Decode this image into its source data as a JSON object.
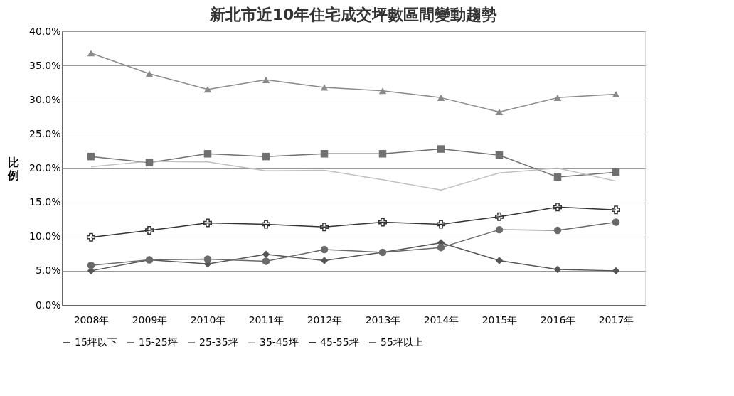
{
  "chart_data": {
    "type": "line",
    "title": "新北市近10年住宅成交坪數區間變動趨勢",
    "ylabel": "比例",
    "categories": [
      "2008年",
      "2009年",
      "2010年",
      "2011年",
      "2012年",
      "2013年",
      "2014年",
      "2015年",
      "2016年",
      "2017年"
    ],
    "ylim": [
      0,
      40
    ],
    "yticks": [
      {
        "value": 0,
        "label": "0.0%"
      },
      {
        "value": 5,
        "label": "5.0%"
      },
      {
        "value": 10,
        "label": "10.0%"
      },
      {
        "value": 15,
        "label": "15.0%"
      },
      {
        "value": 20,
        "label": "20.0%"
      },
      {
        "value": 25,
        "label": "25.0%"
      },
      {
        "value": 30,
        "label": "30.0%"
      },
      {
        "value": 35,
        "label": "35.0%"
      },
      {
        "value": 40,
        "label": "40.0%"
      }
    ],
    "grid": "y",
    "legend": "bottom",
    "line_style": "solid",
    "series": [
      {
        "name": "15坪以下",
        "color": "#555555",
        "marker": "diamond",
        "values": [
          5.0,
          6.6,
          6.0,
          7.4,
          6.5,
          7.7,
          9.1,
          6.5,
          5.2,
          5.0
        ]
      },
      {
        "name": "15-25坪",
        "color": "#707070",
        "marker": "square",
        "values": [
          21.7,
          20.8,
          22.1,
          21.7,
          22.1,
          22.1,
          22.8,
          21.9,
          18.7,
          19.4
        ]
      },
      {
        "name": "25-35坪",
        "color": "#8a8a8a",
        "marker": "triangle",
        "values": [
          36.8,
          33.8,
          31.5,
          32.9,
          31.8,
          31.3,
          30.3,
          28.2,
          30.3,
          30.8
        ]
      },
      {
        "name": "35-45坪",
        "color": "#c0c0c0",
        "marker": "none",
        "values": [
          20.2,
          21.0,
          20.9,
          19.6,
          19.7,
          18.3,
          16.8,
          19.3,
          20.0,
          18.1
        ]
      },
      {
        "name": "45-55坪",
        "color": "#333333",
        "marker": "cross",
        "values": [
          9.9,
          10.9,
          12.0,
          11.8,
          11.4,
          12.1,
          11.8,
          12.9,
          14.3,
          13.9
        ]
      },
      {
        "name": "55坪以上",
        "color": "#6a6a6a",
        "marker": "circle",
        "values": [
          5.8,
          6.6,
          6.7,
          6.4,
          8.1,
          7.7,
          8.4,
          11.0,
          10.9,
          12.1
        ]
      }
    ]
  }
}
